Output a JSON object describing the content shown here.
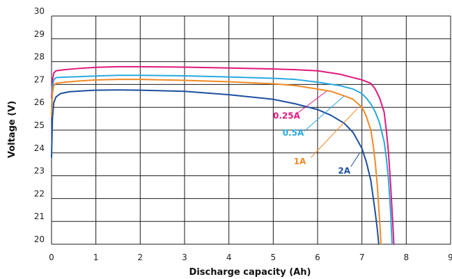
{
  "chart_data": {
    "type": "line",
    "title": "",
    "xlabel": "Discharge capacity (Ah)",
    "ylabel": "Voltage (V)",
    "xlim": [
      0,
      9
    ],
    "ylim": [
      20,
      30
    ],
    "xticks": [
      "0",
      "1",
      "2",
      "3",
      "4",
      "5",
      "6",
      "7",
      "8",
      "9"
    ],
    "yticks": [
      "20",
      "21",
      "22",
      "23",
      "24",
      "25",
      "26",
      "27",
      "28",
      "29",
      "30"
    ],
    "grid": true,
    "series": [
      {
        "name": "0.25A",
        "color": "#e0197d",
        "x": [
          0,
          0.02,
          0.05,
          0.1,
          0.3,
          0.6,
          1,
          1.5,
          2,
          3,
          4,
          5,
          5.5,
          6,
          6.5,
          6.8,
          7.0,
          7.2,
          7.3,
          7.4,
          7.5,
          7.55,
          7.6,
          7.65,
          7.7,
          7.72
        ],
        "y": [
          26.4,
          27.2,
          27.5,
          27.6,
          27.65,
          27.7,
          27.75,
          27.78,
          27.78,
          27.76,
          27.72,
          27.68,
          27.65,
          27.6,
          27.45,
          27.3,
          27.2,
          27.05,
          26.8,
          26.4,
          25.8,
          25.0,
          24.0,
          22.5,
          20.8,
          20.0
        ]
      },
      {
        "name": "0.5A",
        "color": "#29a9e0",
        "x": [
          0,
          0.02,
          0.05,
          0.1,
          0.3,
          0.6,
          1,
          1.5,
          2,
          3,
          4,
          5,
          5.5,
          6,
          6.5,
          6.8,
          7.0,
          7.1,
          7.2,
          7.3,
          7.4,
          7.5,
          7.55,
          7.6,
          7.65,
          7.68
        ],
        "y": [
          26.0,
          26.9,
          27.2,
          27.3,
          27.32,
          27.34,
          27.37,
          27.4,
          27.4,
          27.38,
          27.33,
          27.27,
          27.22,
          27.1,
          26.95,
          26.8,
          26.6,
          26.4,
          26.15,
          25.8,
          25.3,
          24.5,
          23.8,
          22.8,
          21.3,
          20.0
        ]
      },
      {
        "name": "1A",
        "color": "#f08a24",
        "x": [
          0,
          0.02,
          0.05,
          0.1,
          0.3,
          0.6,
          1,
          1.5,
          2,
          3,
          4,
          5,
          5.5,
          6,
          6.3,
          6.6,
          6.8,
          7.0,
          7.1,
          7.2,
          7.25,
          7.3,
          7.35,
          7.4,
          7.43
        ],
        "y": [
          25.6,
          26.6,
          26.95,
          27.05,
          27.1,
          27.15,
          27.2,
          27.22,
          27.22,
          27.18,
          27.12,
          27.03,
          26.95,
          26.8,
          26.7,
          26.5,
          26.35,
          26.0,
          25.6,
          25.0,
          24.4,
          23.6,
          22.5,
          21.0,
          20.0
        ]
      },
      {
        "name": "2A",
        "color": "#1c4fa0",
        "x": [
          0,
          0.02,
          0.05,
          0.1,
          0.2,
          0.4,
          0.7,
          1,
          1.5,
          2,
          3,
          4,
          5,
          5.5,
          6,
          6.3,
          6.6,
          6.8,
          7.0,
          7.1,
          7.2,
          7.25,
          7.3,
          7.35,
          7.38
        ],
        "y": [
          23.8,
          25.5,
          26.2,
          26.45,
          26.6,
          26.68,
          26.72,
          26.75,
          26.76,
          26.75,
          26.7,
          26.55,
          26.35,
          26.15,
          25.9,
          25.65,
          25.3,
          24.9,
          24.2,
          23.6,
          22.8,
          22.1,
          21.4,
          20.6,
          20.0
        ]
      }
    ],
    "annotations": [
      {
        "text": "0.25A",
        "series": "0.25A",
        "text_x": 5.3,
        "text_y": 25.5,
        "line_from": [
          5.55,
          25.75
        ],
        "line_to": [
          6.2,
          26.7
        ]
      },
      {
        "text": "0.5A",
        "series": "0.5A",
        "text_x": 5.45,
        "text_y": 24.75,
        "line_from": [
          5.7,
          24.95
        ],
        "line_to": [
          6.6,
          26.5
        ]
      },
      {
        "text": "1A",
        "series": "1A",
        "text_x": 5.6,
        "text_y": 23.5,
        "line_from": [
          5.85,
          23.8
        ],
        "line_to": [
          6.9,
          25.95
        ]
      },
      {
        "text": "2A",
        "series": "2A",
        "text_x": 6.6,
        "text_y": 23.1,
        "line_from": [
          6.75,
          23.4
        ],
        "line_to": [
          6.95,
          24.0
        ]
      }
    ]
  }
}
